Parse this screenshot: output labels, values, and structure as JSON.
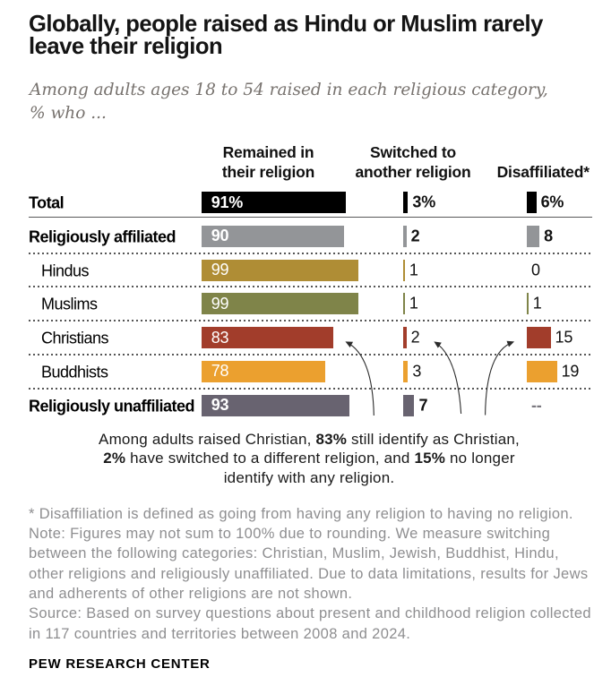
{
  "page": {
    "title_lines": [
      "Globally, people raised as Hindu or Muslim rarely",
      "leave their religion"
    ],
    "subtitle_lines": [
      "Among adults ages 18 to 54 raised in each religious category,",
      "% who ..."
    ],
    "footer": "PEW RESEARCH CENTER"
  },
  "chart_data": {
    "type": "bar",
    "title": "Globally, people raised as Hindu or Muslim rarely leave their religion",
    "subtitle": "Among adults ages 18 to 54 raised in each religious category, % who ...",
    "unit": "%",
    "xlim": [
      0,
      100
    ],
    "columns": [
      {
        "label": "Remained in their religion",
        "label_lines": [
          "Remained in",
          "their religion"
        ]
      },
      {
        "label": "Switched to another religion",
        "label_lines": [
          "Switched to",
          "another religion"
        ]
      },
      {
        "label": "Disaffiliated*",
        "label_lines": [
          "Disaffiliated*"
        ]
      }
    ],
    "rows": [
      {
        "label": "Total",
        "emphasis": true,
        "indent": false,
        "bar_color": "#000000",
        "values": [
          91,
          3,
          6
        ],
        "value_labels": [
          "91%",
          "3%",
          "6%"
        ]
      },
      {
        "label": "Religiously affiliated",
        "emphasis": true,
        "indent": false,
        "bar_color": "#939598",
        "values": [
          90,
          2,
          8
        ],
        "value_labels": [
          "90",
          "2",
          "8"
        ]
      },
      {
        "label": "Hindus",
        "emphasis": false,
        "indent": true,
        "bar_color": "#af8d35",
        "values": [
          99,
          1,
          0
        ],
        "value_labels": [
          "99",
          "1",
          "0"
        ]
      },
      {
        "label": "Muslims",
        "emphasis": false,
        "indent": true,
        "bar_color": "#7f8449",
        "values": [
          99,
          1,
          1
        ],
        "value_labels": [
          "99",
          "1",
          "1"
        ]
      },
      {
        "label": "Christians",
        "emphasis": false,
        "indent": true,
        "bar_color": "#a23d2b",
        "values": [
          83,
          2,
          15
        ],
        "value_labels": [
          "83",
          "2",
          "15"
        ]
      },
      {
        "label": "Buddhists",
        "emphasis": false,
        "indent": true,
        "bar_color": "#eba02f",
        "values": [
          78,
          3,
          19
        ],
        "value_labels": [
          "78",
          "3",
          "19"
        ]
      },
      {
        "label": "Religiously unaffiliated",
        "emphasis": true,
        "indent": false,
        "bar_color": "#686370",
        "values": [
          93,
          7,
          null
        ],
        "value_labels": [
          "93",
          "7",
          "--"
        ]
      }
    ],
    "no_data_color": "#7b7980",
    "annotation_lines": [
      [
        {
          "t": "Among adults raised Christian, "
        },
        {
          "t": "83%",
          "b": true
        },
        {
          "t": " still identify as Christian,"
        }
      ],
      [
        {
          "t": "2%",
          "b": true
        },
        {
          "t": " have switched to a different religion, and "
        },
        {
          "t": "15%",
          "b": true
        },
        {
          "t": " no longer"
        }
      ],
      [
        {
          "t": "identify with any religion."
        }
      ]
    ],
    "notes_lines": [
      "* Disaffiliation is defined as going from having any religion to having no religion.",
      "Note: Figures may not sum to 100% due to rounding. We measure switching",
      "between the following categories: Christian, Muslim, Jewish, Buddhist, Hindu,",
      "other religions and religiously unaffiliated. Due to data limitations, results for Jews",
      "and adherents of other religions are not shown.",
      "Source: Based on survey questions about present and childhood religion collected",
      "in 117 countries and territories between 2008 and 2024."
    ],
    "source_label": "PEW RESEARCH CENTER"
  }
}
